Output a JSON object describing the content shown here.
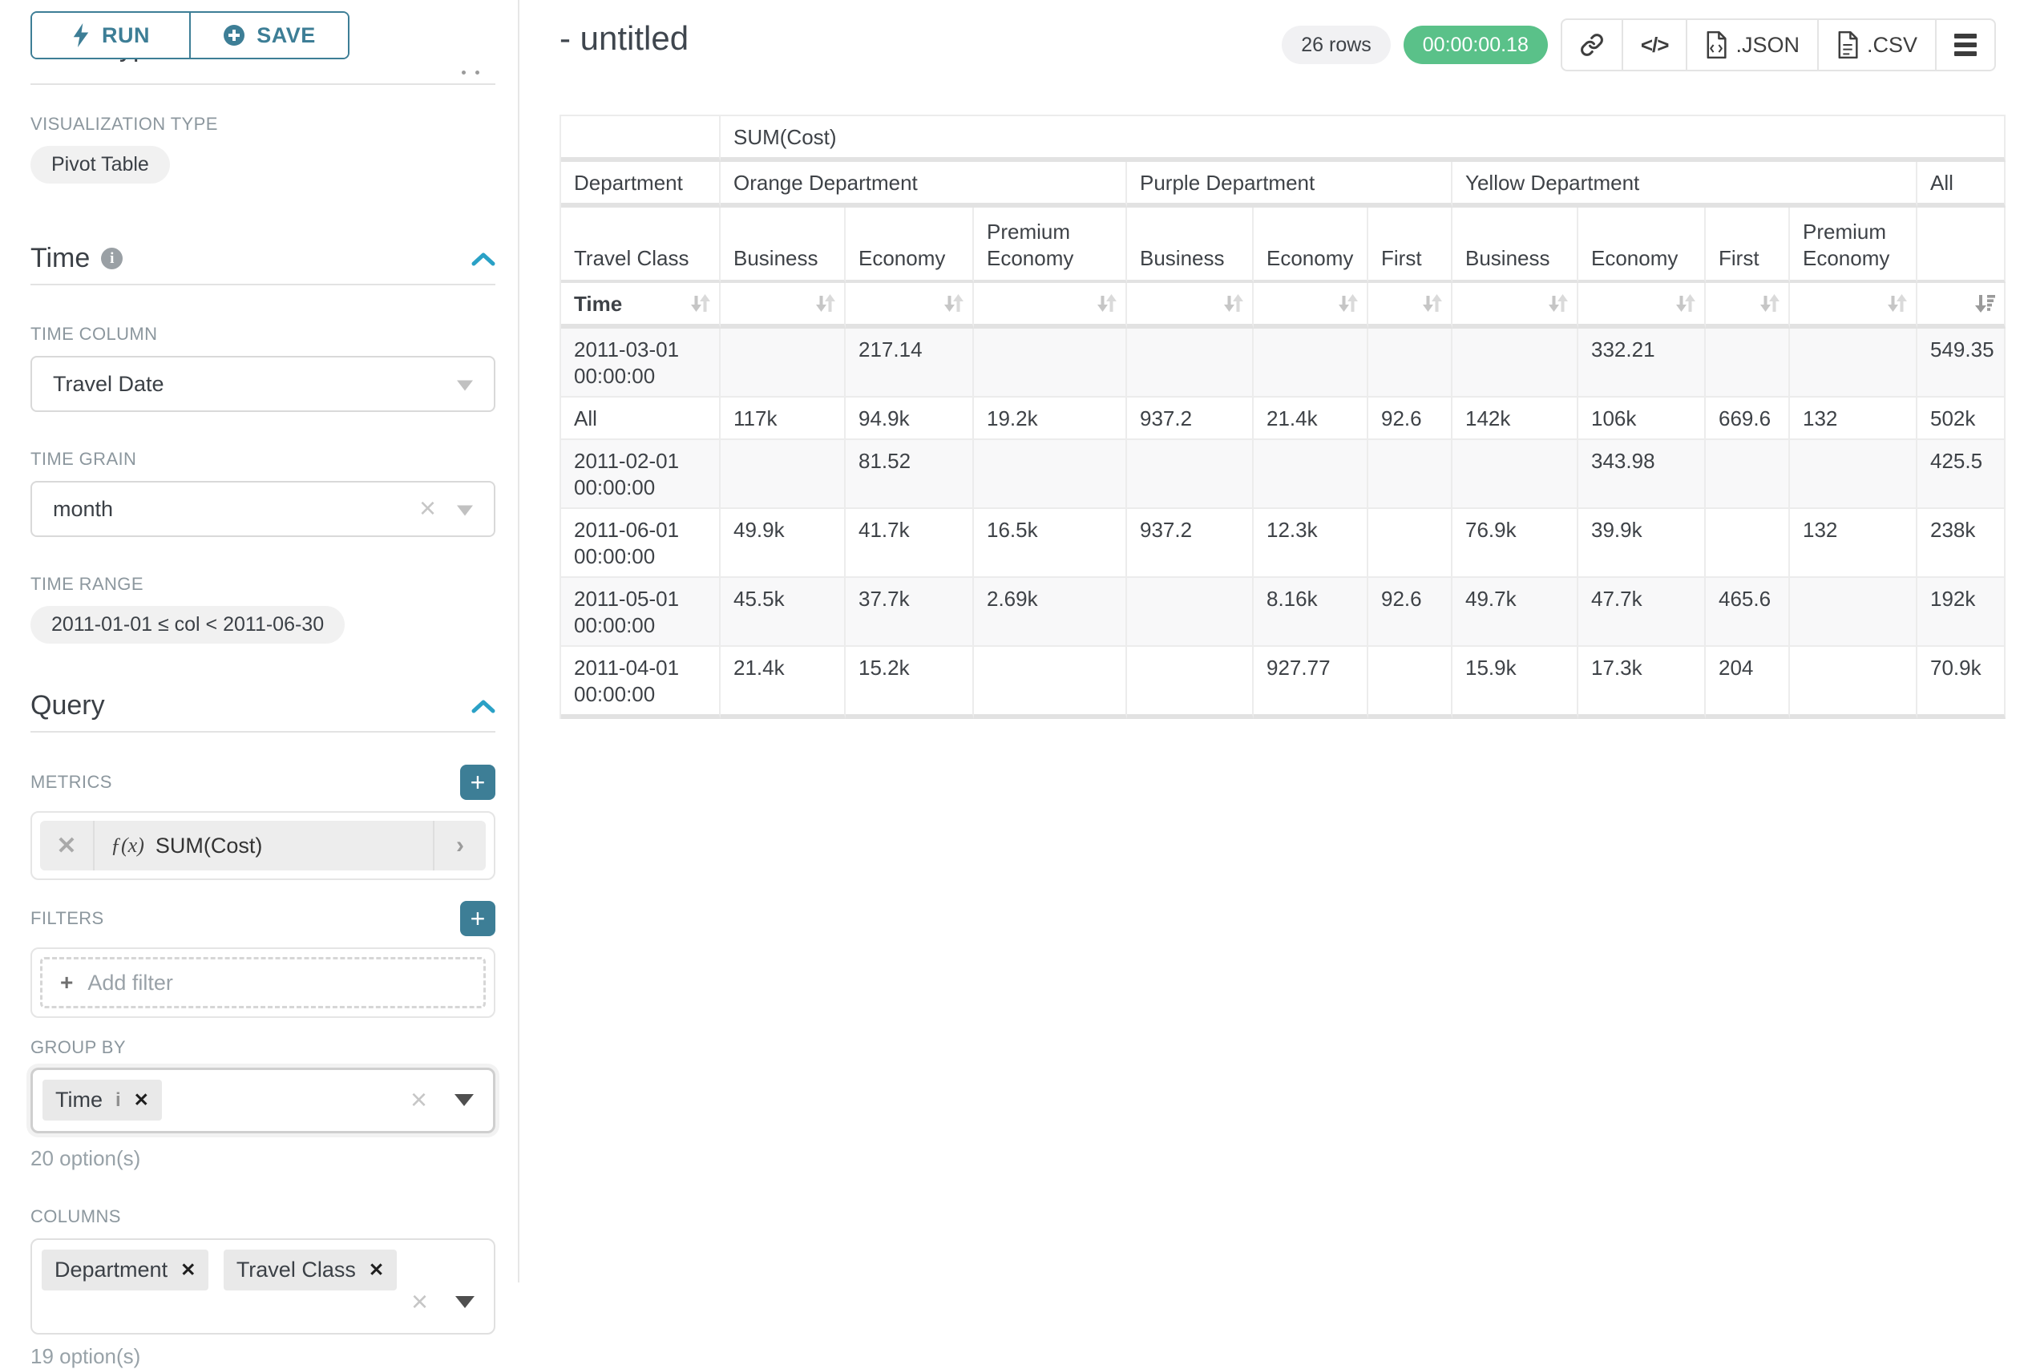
{
  "toolbar": {
    "run_label": "RUN",
    "save_label": "SAVE"
  },
  "colors": {
    "teal": "#3d7e96",
    "chevron_blue": "#2aa1c6",
    "success_green": "#5ac189"
  },
  "panel": {
    "chart_type": {
      "title": "Chart Type",
      "viz_type_label": "VISUALIZATION TYPE",
      "viz_type_value": "Pivot Table"
    },
    "time": {
      "title": "Time",
      "time_column_label": "TIME COLUMN",
      "time_column_value": "Travel Date",
      "time_grain_label": "TIME GRAIN",
      "time_grain_value": "month",
      "time_range_label": "TIME RANGE",
      "time_range_value": "2011-01-01 ≤ col < 2011-06-30"
    },
    "query": {
      "title": "Query",
      "metrics_label": "METRICS",
      "metric_fx": "ƒ(x)",
      "metric_value": "SUM(Cost)",
      "filters_label": "FILTERS",
      "add_filter_label": "Add filter",
      "group_by_label": "GROUP BY",
      "group_by_tag": "Time",
      "group_by_hint": "20 option(s)",
      "columns_label": "COLUMNS",
      "columns_tags": [
        "Department",
        "Travel Class"
      ],
      "columns_hint": "19 option(s)"
    }
  },
  "header": {
    "title": "- untitled",
    "row_count": "26 rows",
    "query_time": "00:00:00.18",
    "export_json_label": ".JSON",
    "export_csv_label": ".CSV"
  },
  "pivot": {
    "metric_label": "SUM(Cost)",
    "col_dim_labels": [
      "Department",
      "Travel Class"
    ],
    "row_dim_label": "Time",
    "groups": [
      {
        "label": "Orange Department",
        "cols": [
          "Business",
          "Economy",
          "Premium Economy"
        ]
      },
      {
        "label": "Purple Department",
        "cols": [
          "Business",
          "Economy",
          "First"
        ]
      },
      {
        "label": "Yellow Department",
        "cols": [
          "Business",
          "Economy",
          "First",
          "Premium Economy"
        ]
      },
      {
        "label": "All",
        "cols": [
          ""
        ]
      }
    ],
    "rows": [
      {
        "label": "2011-03-01 00:00:00",
        "values": [
          "",
          "217.14",
          "",
          "",
          "",
          "",
          "",
          "332.21",
          "",
          "",
          "549.35"
        ]
      },
      {
        "label": "All",
        "values": [
          "117k",
          "94.9k",
          "19.2k",
          "937.2",
          "21.4k",
          "92.6",
          "142k",
          "106k",
          "669.6",
          "132",
          "502k"
        ]
      },
      {
        "label": "2011-02-01 00:00:00",
        "values": [
          "",
          "81.52",
          "",
          "",
          "",
          "",
          "",
          "343.98",
          "",
          "",
          "425.5"
        ]
      },
      {
        "label": "2011-06-01 00:00:00",
        "values": [
          "49.9k",
          "41.7k",
          "16.5k",
          "937.2",
          "12.3k",
          "",
          "76.9k",
          "39.9k",
          "",
          "132",
          "238k"
        ]
      },
      {
        "label": "2011-05-01 00:00:00",
        "values": [
          "45.5k",
          "37.7k",
          "2.69k",
          "",
          "8.16k",
          "92.6",
          "49.7k",
          "47.7k",
          "465.6",
          "",
          "192k"
        ]
      },
      {
        "label": "2011-04-01 00:00:00",
        "values": [
          "21.4k",
          "15.2k",
          "",
          "",
          "927.77",
          "",
          "15.9k",
          "17.3k",
          "204",
          "",
          "70.9k"
        ]
      }
    ],
    "sort": {
      "column": "All",
      "direction": "descending"
    }
  }
}
